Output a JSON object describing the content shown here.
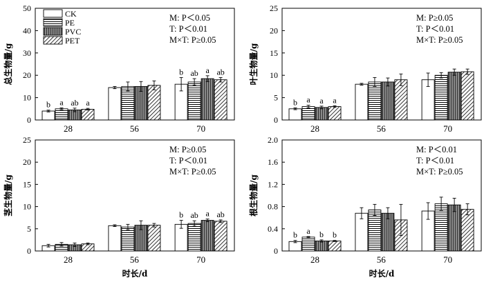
{
  "chart_data": [
    {
      "type": "bar",
      "ylabel": "总生物量/g",
      "xlabel": "",
      "ylim": [
        0,
        50
      ],
      "yticks": [
        "0",
        "10",
        "20",
        "30",
        "40",
        "50"
      ],
      "categories": [
        "28",
        "56",
        "70"
      ],
      "stats": [
        "M: P＜0.05",
        "T: P＜0.01",
        "M×T: P≥0.05"
      ],
      "series": [
        {
          "name": "CK",
          "values": [
            4.0,
            14.5,
            16.0
          ],
          "errors": [
            0.4,
            0.5,
            3.0
          ],
          "sig": [
            "b",
            "",
            "b"
          ]
        },
        {
          "name": "PE",
          "values": [
            5.0,
            15.0,
            17.0
          ],
          "errors": [
            0.4,
            2.0,
            1.5
          ],
          "sig": [
            "a",
            "",
            "ab"
          ]
        },
        {
          "name": "PVC",
          "values": [
            4.5,
            15.0,
            18.5
          ],
          "errors": [
            0.8,
            2.2,
            1.3
          ],
          "sig": [
            "ab",
            "",
            "a"
          ]
        },
        {
          "name": "PET",
          "values": [
            4.8,
            15.5,
            18.0
          ],
          "errors": [
            0.4,
            2.0,
            1.0
          ],
          "sig": [
            "a",
            "",
            "ab"
          ]
        }
      ]
    },
    {
      "type": "bar",
      "ylabel": "叶生物量/g",
      "xlabel": "",
      "ylim": [
        0,
        25
      ],
      "yticks": [
        "0",
        "5",
        "10",
        "15",
        "20",
        "25"
      ],
      "categories": [
        "28",
        "56",
        "70"
      ],
      "stats": [
        "M: P≥0.05",
        "T: P＜0.01",
        "M×T: P≥0.05"
      ],
      "series": [
        {
          "name": "CK",
          "values": [
            2.5,
            8.0,
            9.0
          ],
          "errors": [
            0.2,
            0.2,
            1.5
          ],
          "sig": [
            "b",
            "",
            ""
          ]
        },
        {
          "name": "PE",
          "values": [
            3.0,
            8.5,
            10.0
          ],
          "errors": [
            0.3,
            1.0,
            0.6
          ],
          "sig": [
            "a",
            "",
            ""
          ]
        },
        {
          "name": "PVC",
          "values": [
            2.8,
            8.5,
            10.7
          ],
          "errors": [
            0.3,
            0.9,
            0.7
          ],
          "sig": [
            "a",
            "",
            ""
          ]
        },
        {
          "name": "PET",
          "values": [
            3.0,
            9.0,
            10.8
          ],
          "errors": [
            0.2,
            1.3,
            0.6
          ],
          "sig": [
            "a",
            "",
            ""
          ]
        }
      ]
    },
    {
      "type": "bar",
      "ylabel": "茎生物量/g",
      "xlabel": "时长/d",
      "ylim": [
        0,
        25
      ],
      "yticks": [
        "0",
        "5",
        "10",
        "15",
        "20",
        "25"
      ],
      "categories": [
        "28",
        "56",
        "70"
      ],
      "stats": [
        "M: P≥0.05",
        "T: P＜0.01",
        "M×T: P≥0.05"
      ],
      "series": [
        {
          "name": "CK",
          "values": [
            1.2,
            5.7,
            6.0
          ],
          "errors": [
            0.3,
            0.2,
            0.9
          ],
          "sig": [
            "",
            "",
            "b"
          ]
        },
        {
          "name": "PE",
          "values": [
            1.5,
            5.4,
            6.2
          ],
          "errors": [
            0.4,
            0.6,
            0.6
          ],
          "sig": [
            "",
            "",
            "ab"
          ]
        },
        {
          "name": "PVC",
          "values": [
            1.4,
            5.8,
            6.9
          ],
          "errors": [
            0.4,
            1.0,
            0.3
          ],
          "sig": [
            "",
            "",
            "a"
          ]
        },
        {
          "name": "PET",
          "values": [
            1.6,
            5.8,
            6.7
          ],
          "errors": [
            0.2,
            0.4,
            0.3
          ],
          "sig": [
            "",
            "",
            "ab"
          ]
        }
      ]
    },
    {
      "type": "bar",
      "ylabel": "根生物量/g",
      "xlabel": "时长/d",
      "ylim": [
        0,
        2.0
      ],
      "yticks": [
        "0",
        "0.4",
        "0.8",
        "1.2",
        "1.6",
        "2.0"
      ],
      "categories": [
        "28",
        "56",
        "70"
      ],
      "stats": [
        "M: P＜0.01",
        "T: P＜0.01",
        "M×T: P≥0.05"
      ],
      "series": [
        {
          "name": "CK",
          "values": [
            0.17,
            0.68,
            0.72
          ],
          "errors": [
            0.02,
            0.1,
            0.15
          ],
          "sig": [
            "b",
            "",
            ""
          ]
        },
        {
          "name": "PE",
          "values": [
            0.25,
            0.74,
            0.85
          ],
          "errors": [
            0.01,
            0.1,
            0.12
          ],
          "sig": [
            "a",
            "",
            ""
          ]
        },
        {
          "name": "PVC",
          "values": [
            0.18,
            0.68,
            0.83
          ],
          "errors": [
            0.02,
            0.1,
            0.12
          ],
          "sig": [
            "b",
            "",
            ""
          ]
        },
        {
          "name": "PET",
          "values": [
            0.18,
            0.56,
            0.75
          ],
          "errors": [
            0.01,
            0.28,
            0.1
          ],
          "sig": [
            "b",
            "",
            ""
          ]
        }
      ]
    }
  ],
  "legend": {
    "placement": "top-left",
    "entries": [
      "CK",
      "PE",
      "PVC",
      "PET"
    ]
  }
}
